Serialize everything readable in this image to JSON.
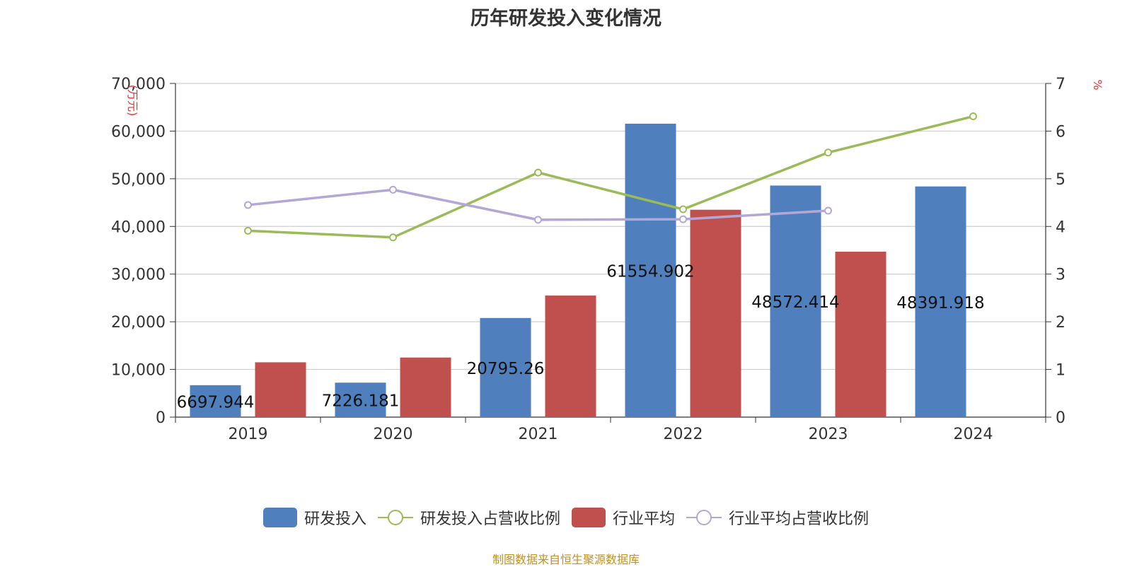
{
  "chart_data": {
    "type": "bar",
    "title": "历年研发投入变化情况",
    "categories": [
      "2019",
      "2020",
      "2021",
      "2022",
      "2023",
      "2024"
    ],
    "y_left": {
      "label": "万元",
      "ylim": [
        0,
        70000
      ],
      "ticks": [
        "0",
        "10,000",
        "20,000",
        "30,000",
        "40,000",
        "50,000",
        "60,000",
        "70,000"
      ]
    },
    "y_right": {
      "label": "%",
      "ylim": [
        0,
        7
      ],
      "ticks": [
        "0",
        "1",
        "2",
        "3",
        "4",
        "5",
        "6",
        "7"
      ]
    },
    "series": [
      {
        "name": "研发投入",
        "type": "bar",
        "axis": "left",
        "color": "#4f7fbd",
        "values": [
          6697.944,
          7226.181,
          20795.26,
          61554.902,
          48572.414,
          48391.918
        ],
        "labels": [
          "6697.944",
          "7226.181",
          "20795.26",
          "61554.902",
          "48572.414",
          "48391.918"
        ]
      },
      {
        "name": "行业平均",
        "type": "bar",
        "axis": "left",
        "color": "#c0504d",
        "values": [
          11500,
          12500,
          25500,
          43500,
          34700,
          null
        ]
      },
      {
        "name": "研发投入占营收比例",
        "type": "line",
        "axis": "right",
        "color": "#9bbb59",
        "values": [
          3.91,
          3.77,
          5.13,
          4.36,
          5.55,
          6.31
        ]
      },
      {
        "name": "行业平均占营收比例",
        "type": "line",
        "axis": "right",
        "color": "#b4a7d6",
        "values": [
          4.45,
          4.77,
          4.14,
          4.15,
          4.33,
          null
        ]
      }
    ],
    "grid": true,
    "legend_position": "bottom"
  },
  "legend": {
    "items": [
      {
        "label": "研发投入",
        "kind": "bar",
        "color": "#4f7fbd"
      },
      {
        "label": "研发投入占营收比例",
        "kind": "line",
        "color": "#9bbb59"
      },
      {
        "label": "行业平均",
        "kind": "bar",
        "color": "#c0504d"
      },
      {
        "label": "行业平均占营收比例",
        "kind": "line",
        "color": "#b4a7d6"
      }
    ]
  },
  "source": "制图数据来自恒生聚源数据库"
}
